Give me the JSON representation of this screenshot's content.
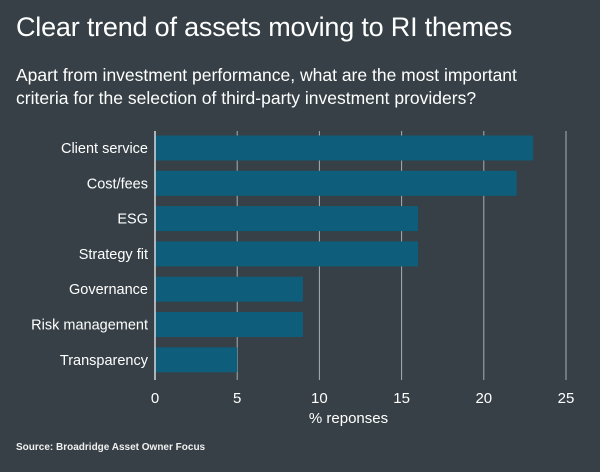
{
  "title": "Clear trend of assets moving to RI themes",
  "subtitle": {
    "line1": "Apart from investment performance, what are the most important",
    "line2": "criteria for the selection of third-party investment providers?"
  },
  "source": "Source: Broadridge Asset Owner Focus",
  "colors": {
    "background": "#364046",
    "bar": "#0e5d7b",
    "grid": "#a9afb3",
    "text": "#ffffff"
  },
  "chart_data": {
    "type": "bar",
    "orientation": "horizontal",
    "categories": [
      "Client service",
      "Cost/fees",
      "ESG",
      "Strategy fit",
      "Governance",
      "Risk management",
      "Transparency"
    ],
    "values": [
      23,
      22,
      16,
      16,
      9,
      9,
      5
    ],
    "xlabel": "% reponses",
    "xlim": [
      0,
      25
    ],
    "xticks": [
      0,
      5,
      10,
      15,
      20,
      25
    ],
    "grid": "vertical"
  }
}
